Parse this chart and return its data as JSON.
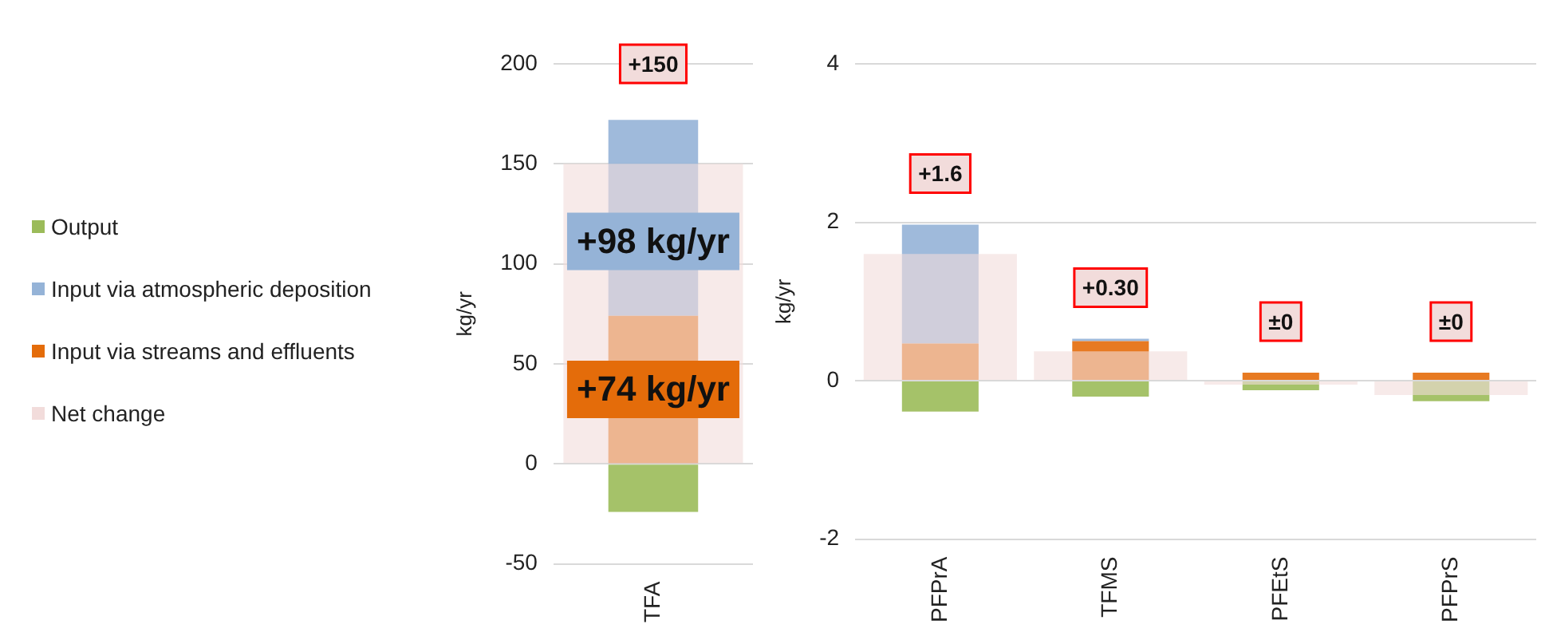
{
  "chart_data": [
    {
      "type": "bar",
      "ylabel": "kg/yr",
      "categories": [
        "TFA"
      ],
      "ylim": [
        -50,
        200
      ],
      "yticks": [
        -50,
        0,
        50,
        100,
        150,
        200
      ],
      "grid": "y",
      "legend": "left",
      "series": [
        {
          "name": "Net change",
          "type": "bar",
          "color": "#f2dcdb",
          "values": [
            150
          ]
        },
        {
          "name": "Output",
          "color": "#9bbb59",
          "values": [
            -24
          ]
        },
        {
          "name": "Input via streams and effluents",
          "color": "#e46c0a",
          "values": [
            74
          ]
        },
        {
          "name": "Input via atmospheric deposition",
          "color": "#95b3d7",
          "base": [
            74
          ],
          "values": [
            98
          ]
        }
      ],
      "annotations": [
        "+150",
        "+98 kg/yr",
        "+74 kg/yr"
      ]
    },
    {
      "type": "bar",
      "ylabel": "kg/yr",
      "categories": [
        "PFPrA",
        "TFMS",
        "PFEtS",
        "PFPrS"
      ],
      "ylim": [
        -2,
        4
      ],
      "yticks": [
        -2,
        0,
        2,
        4
      ],
      "grid": "y",
      "series": [
        {
          "type": "bar",
          "color": "#f2dcdb",
          "values": [
            1.6,
            0.37,
            -0.05,
            -0.18
          ]
        },
        {
          "color": "#9bbb59",
          "values": [
            -0.39,
            -0.2,
            -0.12,
            -0.26
          ]
        },
        {
          "color": "#e46c0a",
          "values": [
            0.47,
            0.5,
            0.1,
            0.1
          ]
        },
        {
          "color": "#95b3d7",
          "base": [
            0.47,
            0.5,
            null,
            null
          ],
          "values": [
            1.5,
            0.03,
            null,
            null
          ]
        }
      ],
      "annotations": [
        "+1.6",
        "+0.30",
        "±0",
        "±0"
      ]
    }
  ]
}
